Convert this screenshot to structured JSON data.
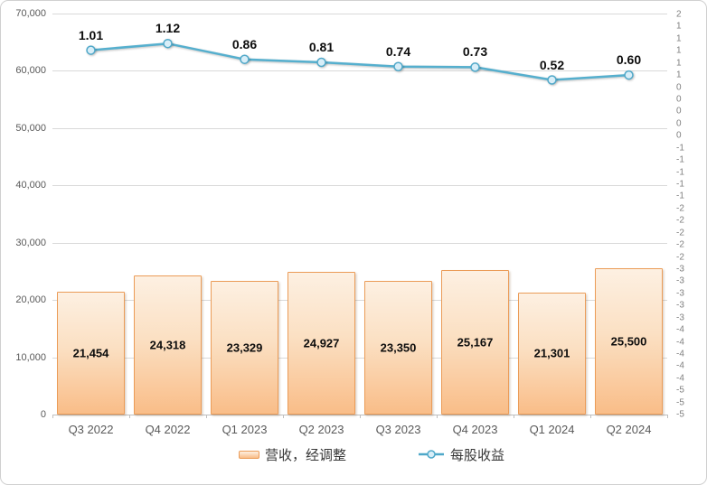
{
  "chart_data": {
    "type": "combo",
    "title": "",
    "categories": [
      "Q3 2022",
      "Q4 2022",
      "Q1 2023",
      "Q2 2023",
      "Q3 2023",
      "Q4 2023",
      "Q1 2024",
      "Q2 2024"
    ],
    "series": [
      {
        "name": "营收，经调整",
        "type": "bar",
        "axis": "left",
        "values": [
          21454,
          24318,
          23329,
          24927,
          23350,
          25167,
          21301,
          25500
        ],
        "labels": [
          "21,454",
          "24,318",
          "23,329",
          "24,927",
          "23,350",
          "25,167",
          "21,301",
          "25,500"
        ]
      },
      {
        "name": "每股收益",
        "type": "line",
        "axis": "right",
        "values": [
          1.01,
          1.12,
          0.86,
          0.81,
          0.74,
          0.73,
          0.52,
          0.6
        ],
        "labels": [
          "1.01",
          "1.12",
          "0.86",
          "0.81",
          "0.74",
          "0.73",
          "0.52",
          "0.60"
        ]
      }
    ],
    "left_axis": {
      "min": 0,
      "max": 70000,
      "step": 10000,
      "tick_labels_top_to_bottom": [
        "70,000",
        "60,000",
        "50,000",
        "40,000",
        "30,000",
        "20,000",
        "10,000",
        "0"
      ]
    },
    "right_axis": {
      "top_value": 1.6,
      "bottom_value": -5.0,
      "step": -0.2,
      "tick_labels_top_to_bottom": [
        "2",
        "1",
        "1",
        "1",
        "1",
        "1",
        "0",
        "0",
        "0",
        "0",
        "0",
        "-1",
        "-1",
        "-1",
        "-1",
        "-1",
        "-2",
        "-2",
        "-2",
        "-2",
        "-2",
        "-3",
        "-3",
        "-3",
        "-3",
        "-3",
        "-4",
        "-4",
        "-4",
        "-4",
        "-4",
        "-5",
        "-5",
        "-5"
      ]
    },
    "legend": {
      "position": "bottom",
      "items": [
        "营收，经调整",
        "每股收益"
      ]
    },
    "grid": "horizontal",
    "colors": {
      "bar_fill_top": "#FDF0E2",
      "bar_fill_bottom": "#F9BD88",
      "bar_border": "#EB9C58",
      "line": "#55AFCE",
      "marker_fill": "#D8EEF8",
      "marker_stroke": "#4FA8C9",
      "gridline": "#D9D9D9",
      "left_axis_text": "#595959",
      "right_axis_text": "#7F7F7F",
      "data_label_text": "#0D0D0D"
    }
  }
}
